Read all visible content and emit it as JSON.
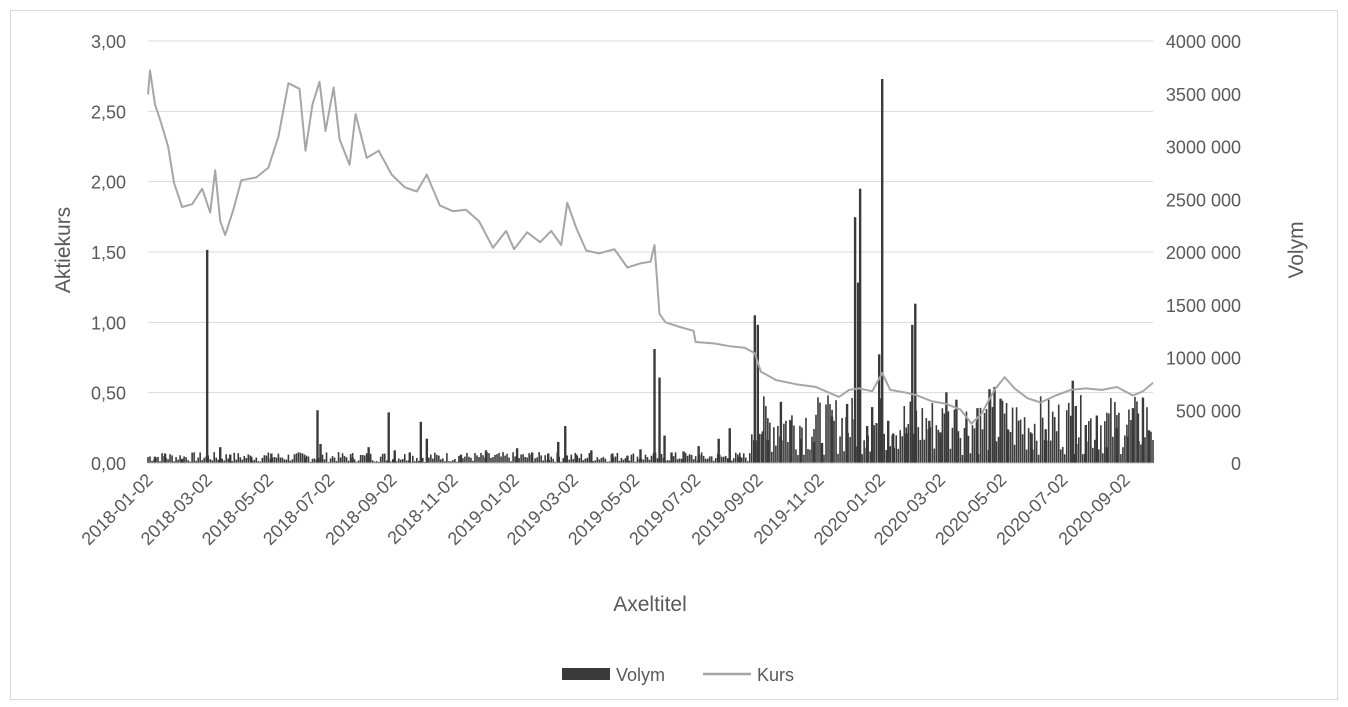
{
  "chart_data": {
    "type": "line",
    "xlabel": "Axeltitel",
    "ylabel": "Aktiekurs",
    "y2label": "Volym",
    "ylim": [
      0,
      3
    ],
    "y2lim": [
      0,
      4000000
    ],
    "y_ticks": [
      "0,00",
      "0,50",
      "1,00",
      "1,50",
      "2,00",
      "2,50",
      "3,00"
    ],
    "y2_ticks": [
      "0",
      "500 000",
      "1000 000",
      "1500 000",
      "2000 000",
      "2500 000",
      "3000 000",
      "3500 000",
      "4000 000"
    ],
    "x_ticks": [
      "2018-01-02",
      "2018-03-02",
      "2018-05-02",
      "2018-07-02",
      "2018-09-02",
      "2018-11-02",
      "2019-01-02",
      "2019-03-02",
      "2019-05-02",
      "2019-07-02",
      "2019-09-02",
      "2019-11-02",
      "2020-01-02",
      "2020-03-02",
      "2020-05-02",
      "2020-07-02",
      "2020-09-02"
    ],
    "x_range": [
      "2018-01-02",
      "2020-09-30"
    ],
    "grid": true,
    "legend_position": "bottom",
    "series": [
      {
        "name": "Volym",
        "kind": "bar",
        "axis": "right",
        "color": "#3a3a3a",
        "points": [
          [
            "2018-01-09",
            60000
          ],
          [
            "2018-01-19",
            90000
          ],
          [
            "2018-02-05",
            40000
          ],
          [
            "2018-03-02",
            2020000
          ],
          [
            "2018-03-15",
            150000
          ],
          [
            "2018-03-25",
            80000
          ],
          [
            "2018-04-15",
            60000
          ],
          [
            "2018-05-05",
            90000
          ],
          [
            "2018-06-08",
            50000
          ],
          [
            "2018-06-20",
            500000
          ],
          [
            "2018-06-23",
            180000
          ],
          [
            "2018-07-25",
            50000
          ],
          [
            "2018-08-10",
            150000
          ],
          [
            "2018-08-30",
            480000
          ],
          [
            "2018-09-05",
            120000
          ],
          [
            "2018-09-20",
            100000
          ],
          [
            "2018-10-01",
            390000
          ],
          [
            "2018-10-07",
            230000
          ],
          [
            "2018-11-10",
            80000
          ],
          [
            "2018-12-05",
            120000
          ],
          [
            "2019-01-05",
            140000
          ],
          [
            "2019-01-20",
            100000
          ],
          [
            "2019-02-05",
            90000
          ],
          [
            "2019-02-15",
            200000
          ],
          [
            "2019-02-22",
            350000
          ],
          [
            "2019-03-05",
            80000
          ],
          [
            "2019-03-20",
            120000
          ],
          [
            "2019-04-10",
            90000
          ],
          [
            "2019-04-25",
            70000
          ],
          [
            "2019-05-08",
            130000
          ],
          [
            "2019-05-22",
            1080000
          ],
          [
            "2019-05-27",
            810000
          ],
          [
            "2019-06-01",
            260000
          ],
          [
            "2019-06-08",
            100000
          ],
          [
            "2019-06-20",
            110000
          ],
          [
            "2019-07-05",
            160000
          ],
          [
            "2019-07-25",
            230000
          ],
          [
            "2019-08-05",
            330000
          ],
          [
            "2019-08-15",
            60000
          ],
          [
            "2019-08-30",
            1400000
          ],
          [
            "2019-09-02",
            1310000
          ],
          [
            "2019-09-07",
            300000
          ],
          [
            "2019-09-12",
            220000
          ],
          [
            "2019-09-25",
            580000
          ],
          [
            "2019-10-05",
            400000
          ],
          [
            "2019-10-15",
            230000
          ],
          [
            "2019-10-28",
            200000
          ],
          [
            "2019-11-05",
            190000
          ],
          [
            "2019-11-15",
            440000
          ],
          [
            "2019-11-30",
            560000
          ],
          [
            "2019-12-08",
            2330000
          ],
          [
            "2019-12-11",
            1710000
          ],
          [
            "2019-12-13",
            2600000
          ],
          [
            "2019-12-20",
            350000
          ],
          [
            "2019-12-25",
            530000
          ],
          [
            "2020-01-01",
            1030000
          ],
          [
            "2020-01-04",
            3640000
          ],
          [
            "2020-01-10",
            400000
          ],
          [
            "2020-01-15",
            280000
          ],
          [
            "2020-01-28",
            280000
          ],
          [
            "2020-02-03",
            1310000
          ],
          [
            "2020-02-06",
            1510000
          ],
          [
            "2020-02-20",
            400000
          ],
          [
            "2020-03-02",
            290000
          ],
          [
            "2020-03-08",
            670000
          ],
          [
            "2020-03-18",
            600000
          ],
          [
            "2020-03-28",
            430000
          ],
          [
            "2020-04-08",
            520000
          ],
          [
            "2020-04-20",
            700000
          ],
          [
            "2020-04-25",
            720000
          ],
          [
            "2020-05-01",
            610000
          ],
          [
            "2020-05-08",
            320000
          ],
          [
            "2020-06-01",
            280000
          ],
          [
            "2020-06-15",
            320000
          ],
          [
            "2020-07-12",
            780000
          ],
          [
            "2020-07-15",
            540000
          ],
          [
            "2020-07-25",
            360000
          ],
          [
            "2020-08-05",
            450000
          ],
          [
            "2020-08-15",
            150000
          ],
          [
            "2020-08-25",
            330000
          ],
          [
            "2020-09-05",
            250000
          ],
          [
            "2020-09-10",
            520000
          ],
          [
            "2020-09-15",
            470000
          ],
          [
            "2020-09-20",
            620000
          ],
          [
            "2020-09-26",
            310000
          ]
        ]
      },
      {
        "name": "Kurs",
        "kind": "line",
        "axis": "left",
        "color": "#a6a6a6",
        "points": [
          [
            "2018-01-02",
            2.62
          ],
          [
            "2018-01-04",
            2.79
          ],
          [
            "2018-01-09",
            2.55
          ],
          [
            "2018-01-15",
            2.42
          ],
          [
            "2018-01-22",
            2.25
          ],
          [
            "2018-01-28",
            1.99
          ],
          [
            "2018-02-05",
            1.82
          ],
          [
            "2018-02-15",
            1.84
          ],
          [
            "2018-02-25",
            1.95
          ],
          [
            "2018-03-05",
            1.78
          ],
          [
            "2018-03-10",
            2.08
          ],
          [
            "2018-03-15",
            1.72
          ],
          [
            "2018-03-20",
            1.62
          ],
          [
            "2018-03-28",
            1.8
          ],
          [
            "2018-04-05",
            2.01
          ],
          [
            "2018-04-20",
            2.03
          ],
          [
            "2018-05-02",
            2.1
          ],
          [
            "2018-05-12",
            2.32
          ],
          [
            "2018-05-22",
            2.7
          ],
          [
            "2018-06-02",
            2.66
          ],
          [
            "2018-06-08",
            2.22
          ],
          [
            "2018-06-15",
            2.55
          ],
          [
            "2018-06-22",
            2.71
          ],
          [
            "2018-06-28",
            2.36
          ],
          [
            "2018-07-06",
            2.67
          ],
          [
            "2018-07-12",
            2.3
          ],
          [
            "2018-07-22",
            2.12
          ],
          [
            "2018-07-28",
            2.48
          ],
          [
            "2018-08-08",
            2.17
          ],
          [
            "2018-08-20",
            2.22
          ],
          [
            "2018-09-02",
            2.05
          ],
          [
            "2018-09-15",
            1.96
          ],
          [
            "2018-09-27",
            1.93
          ],
          [
            "2018-10-07",
            2.05
          ],
          [
            "2018-10-20",
            1.83
          ],
          [
            "2018-11-02",
            1.79
          ],
          [
            "2018-11-15",
            1.8
          ],
          [
            "2018-11-28",
            1.72
          ],
          [
            "2018-12-12",
            1.53
          ],
          [
            "2018-12-25",
            1.65
          ],
          [
            "2019-01-02",
            1.52
          ],
          [
            "2019-01-15",
            1.64
          ],
          [
            "2019-01-28",
            1.57
          ],
          [
            "2019-02-08",
            1.65
          ],
          [
            "2019-02-18",
            1.55
          ],
          [
            "2019-02-24",
            1.85
          ],
          [
            "2019-03-05",
            1.67
          ],
          [
            "2019-03-15",
            1.51
          ],
          [
            "2019-03-28",
            1.49
          ],
          [
            "2019-04-12",
            1.52
          ],
          [
            "2019-04-25",
            1.39
          ],
          [
            "2019-05-08",
            1.42
          ],
          [
            "2019-05-18",
            1.43
          ],
          [
            "2019-05-22",
            1.55
          ],
          [
            "2019-05-27",
            1.06
          ],
          [
            "2019-06-02",
            1.0
          ],
          [
            "2019-06-15",
            0.97
          ],
          [
            "2019-06-30",
            0.94
          ],
          [
            "2019-07-02",
            0.86
          ],
          [
            "2019-07-20",
            0.85
          ],
          [
            "2019-08-05",
            0.83
          ],
          [
            "2019-08-20",
            0.82
          ],
          [
            "2019-08-30",
            0.78
          ],
          [
            "2019-09-05",
            0.65
          ],
          [
            "2019-09-20",
            0.59
          ],
          [
            "2019-10-10",
            0.56
          ],
          [
            "2019-10-30",
            0.54
          ],
          [
            "2019-11-12",
            0.5
          ],
          [
            "2019-11-22",
            0.47
          ],
          [
            "2019-12-02",
            0.52
          ],
          [
            "2019-12-12",
            0.53
          ],
          [
            "2019-12-25",
            0.51
          ],
          [
            "2020-01-04",
            0.64
          ],
          [
            "2020-01-12",
            0.52
          ],
          [
            "2020-01-28",
            0.5
          ],
          [
            "2020-02-08",
            0.48
          ],
          [
            "2020-02-22",
            0.44
          ],
          [
            "2020-03-08",
            0.42
          ],
          [
            "2020-03-22",
            0.38
          ],
          [
            "2020-04-02",
            0.28
          ],
          [
            "2020-04-12",
            0.35
          ],
          [
            "2020-04-25",
            0.52
          ],
          [
            "2020-05-05",
            0.61
          ],
          [
            "2020-05-15",
            0.53
          ],
          [
            "2020-05-28",
            0.46
          ],
          [
            "2020-06-10",
            0.43
          ],
          [
            "2020-06-25",
            0.48
          ],
          [
            "2020-07-10",
            0.52
          ],
          [
            "2020-07-25",
            0.53
          ],
          [
            "2020-08-10",
            0.52
          ],
          [
            "2020-08-25",
            0.54
          ],
          [
            "2020-09-10",
            0.48
          ],
          [
            "2020-09-20",
            0.51
          ],
          [
            "2020-09-30",
            0.57
          ]
        ]
      }
    ]
  }
}
